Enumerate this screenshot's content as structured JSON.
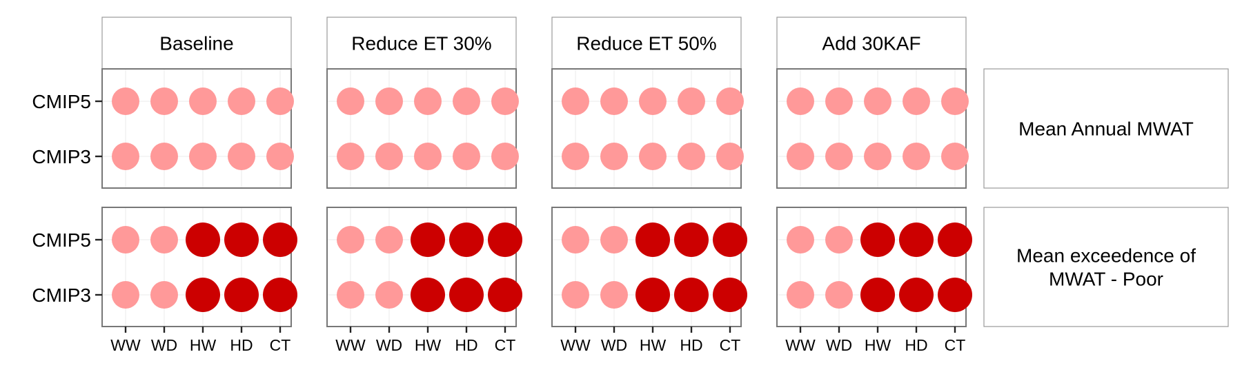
{
  "chart_data": {
    "type": "scatter",
    "facet_columns": [
      "Baseline",
      "Reduce ET 30%",
      "Reduce ET 50%",
      "Add 30KAF"
    ],
    "facet_rows": [
      [
        "Mean Annual MWAT"
      ],
      [
        "Mean exceedence of",
        "MWAT - Poor"
      ]
    ],
    "x_categories": [
      "WW",
      "WD",
      "HW",
      "HD",
      "CT"
    ],
    "y_categories": [
      "CMIP5",
      "CMIP3"
    ],
    "colors": {
      "low": "#ff9999",
      "high": "#cc0000"
    },
    "size_levels": {
      "low": 1,
      "high": 1.25
    },
    "values": [
      [
        [
          [
            "low",
            "low",
            "low",
            "low",
            "low"
          ],
          [
            "low",
            "low",
            "low",
            "low",
            "low"
          ]
        ],
        [
          [
            "low",
            "low",
            "low",
            "low",
            "low"
          ],
          [
            "low",
            "low",
            "low",
            "low",
            "low"
          ]
        ],
        [
          [
            "low",
            "low",
            "low",
            "low",
            "low"
          ],
          [
            "low",
            "low",
            "low",
            "low",
            "low"
          ]
        ],
        [
          [
            "low",
            "low",
            "low",
            "low",
            "low"
          ],
          [
            "low",
            "low",
            "low",
            "low",
            "low"
          ]
        ]
      ],
      [
        [
          [
            "low",
            "low",
            "high",
            "high",
            "high"
          ],
          [
            "low",
            "low",
            "high",
            "high",
            "high"
          ]
        ],
        [
          [
            "low",
            "low",
            "high",
            "high",
            "high"
          ],
          [
            "low",
            "low",
            "high",
            "high",
            "high"
          ]
        ],
        [
          [
            "low",
            "low",
            "high",
            "high",
            "high"
          ],
          [
            "low",
            "low",
            "high",
            "high",
            "high"
          ]
        ],
        [
          [
            "low",
            "low",
            "high",
            "high",
            "high"
          ],
          [
            "low",
            "low",
            "high",
            "high",
            "high"
          ]
        ]
      ]
    ],
    "grid": true,
    "legend": "none"
  }
}
